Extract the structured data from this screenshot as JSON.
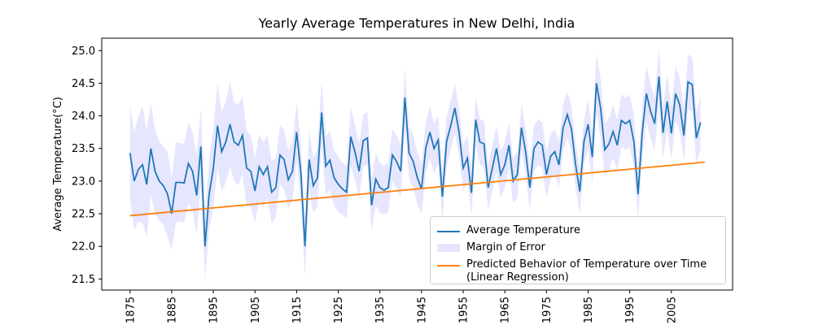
{
  "chart_data": {
    "type": "line",
    "title": "Yearly Average Temperatures in New Delhi, India",
    "ylabel": "Average Temperature(°C)",
    "xlim": [
      1868.2,
      2019.7
    ],
    "ylim": [
      21.33,
      25.19
    ],
    "xticks": [
      1875,
      1885,
      1895,
      1905,
      1915,
      1925,
      1935,
      1945,
      1955,
      1965,
      1975,
      1985,
      1995,
      2005
    ],
    "yticks": [
      21.5,
      {
        "value": 22.0,
        "label": "22.0"
      },
      22.5,
      {
        "value": 23.0,
        "label": "23.0"
      },
      23.5,
      {
        "value": 24.0,
        "label": "24.0"
      },
      24.5,
      {
        "value": 25.0,
        "label": "25.0"
      }
    ],
    "legend": "lower right",
    "x": [
      1875,
      1876,
      1877,
      1878,
      1879,
      1880,
      1881,
      1882,
      1883,
      1884,
      1885,
      1886,
      1887,
      1888,
      1889,
      1890,
      1891,
      1892,
      1893,
      1894,
      1895,
      1896,
      1897,
      1898,
      1899,
      1900,
      1901,
      1902,
      1903,
      1904,
      1905,
      1906,
      1907,
      1908,
      1909,
      1910,
      1911,
      1912,
      1913,
      1914,
      1915,
      1916,
      1917,
      1918,
      1919,
      1920,
      1921,
      1922,
      1923,
      1924,
      1925,
      1926,
      1927,
      1928,
      1929,
      1930,
      1931,
      1932,
      1933,
      1934,
      1935,
      1936,
      1937,
      1938,
      1939,
      1940,
      1941,
      1942,
      1943,
      1944,
      1945,
      1946,
      1947,
      1948,
      1949,
      1950,
      1951,
      1952,
      1953,
      1954,
      1955,
      1956,
      1957,
      1958,
      1959,
      1960,
      1961,
      1962,
      1963,
      1964,
      1965,
      1966,
      1967,
      1968,
      1969,
      1970,
      1971,
      1972,
      1973,
      1974,
      1975,
      1976,
      1977,
      1978,
      1979,
      1980,
      1981,
      1982,
      1983,
      1984,
      1985,
      1986,
      1987,
      1988,
      1989,
      1990,
      1991,
      1992,
      1993,
      1994,
      1995,
      1996,
      1997,
      1998,
      1999,
      2000,
      2001,
      2002,
      2003,
      2004,
      2005,
      2006,
      2007,
      2008,
      2009,
      2010,
      2011,
      2012
    ],
    "series": [
      {
        "name": "Average Temperature",
        "color": "#1f77b4",
        "values": [
          23.43,
          23.0,
          23.18,
          23.25,
          22.95,
          23.5,
          23.15,
          23.0,
          22.93,
          22.8,
          22.5,
          22.98,
          22.98,
          22.97,
          23.27,
          23.15,
          22.78,
          23.53,
          22.0,
          22.8,
          23.2,
          23.85,
          23.45,
          23.6,
          23.87,
          23.6,
          23.55,
          23.7,
          23.2,
          23.15,
          22.85,
          23.22,
          23.1,
          23.22,
          22.83,
          22.9,
          23.4,
          23.33,
          23.02,
          23.15,
          23.75,
          23.15,
          22.0,
          23.33,
          22.93,
          23.05,
          24.05,
          23.23,
          23.32,
          23.05,
          22.95,
          22.88,
          22.83,
          23.68,
          23.45,
          23.15,
          23.62,
          23.66,
          22.63,
          23.03,
          22.9,
          22.86,
          22.9,
          23.4,
          23.3,
          23.15,
          24.28,
          23.43,
          23.3,
          23.05,
          22.88,
          23.5,
          23.75,
          23.5,
          23.63,
          22.76,
          23.6,
          23.85,
          24.12,
          23.75,
          23.2,
          23.35,
          22.82,
          23.94,
          23.6,
          23.57,
          22.9,
          23.2,
          23.5,
          23.1,
          23.25,
          23.55,
          23.0,
          23.1,
          23.82,
          23.45,
          22.9,
          23.5,
          23.6,
          23.55,
          23.1,
          23.38,
          23.45,
          23.25,
          23.82,
          24.02,
          23.8,
          23.25,
          22.84,
          23.6,
          23.87,
          23.37,
          24.5,
          24.12,
          23.48,
          23.57,
          23.76,
          23.55,
          23.93,
          23.88,
          23.93,
          23.6,
          22.8,
          23.75,
          24.34,
          24.07,
          23.88,
          24.6,
          23.74,
          24.22,
          23.73,
          24.34,
          24.17,
          23.7,
          24.52,
          24.48,
          23.66,
          23.9
        ]
      },
      {
        "name": "Margin of Error",
        "color": "#e6e6ff",
        "errors": [
          0.72,
          0.75,
          0.8,
          0.9,
          0.82,
          0.7,
          0.65,
          0.6,
          0.6,
          0.65,
          0.55,
          0.62,
          0.6,
          0.6,
          0.62,
          0.6,
          0.6,
          0.6,
          0.5,
          0.55,
          0.6,
          0.65,
          0.62,
          0.62,
          0.65,
          0.6,
          0.62,
          0.6,
          0.58,
          0.55,
          0.5,
          0.5,
          0.5,
          0.48,
          0.48,
          0.45,
          0.45,
          0.45,
          0.45,
          0.45,
          0.45,
          0.45,
          0.45,
          0.45,
          0.42,
          0.45,
          0.5,
          0.45,
          0.45,
          0.42,
          0.42,
          0.4,
          0.4,
          0.45,
          0.42,
          0.42,
          0.4,
          0.4,
          0.4,
          0.4,
          0.38,
          0.38,
          0.38,
          0.4,
          0.4,
          0.4,
          0.45,
          0.4,
          0.4,
          0.4,
          0.38,
          0.4,
          0.4,
          0.38,
          0.38,
          0.38,
          0.38,
          0.38,
          0.38,
          0.36,
          0.35,
          0.35,
          0.35,
          0.35,
          0.35,
          0.35,
          0.35,
          0.35,
          0.35,
          0.35,
          0.35,
          0.35,
          0.35,
          0.35,
          0.35,
          0.35,
          0.35,
          0.35,
          0.35,
          0.35,
          0.35,
          0.35,
          0.35,
          0.35,
          0.35,
          0.35,
          0.35,
          0.35,
          0.35,
          0.35,
          0.38,
          0.4,
          0.45,
          0.45,
          0.4,
          0.4,
          0.4,
          0.4,
          0.4,
          0.4,
          0.4,
          0.4,
          0.4,
          0.4,
          0.42,
          0.42,
          0.4,
          0.45,
          0.4,
          0.42,
          0.4,
          0.42,
          0.4,
          0.4,
          0.42,
          0.42,
          0.4,
          0.4
        ]
      },
      {
        "name": "Predicted Behavior of Temperature over Time\n(Linear Regression)",
        "color": "#ff7f0e",
        "x": [
          1875,
          2013
        ],
        "values": [
          22.47,
          23.29
        ]
      }
    ]
  }
}
